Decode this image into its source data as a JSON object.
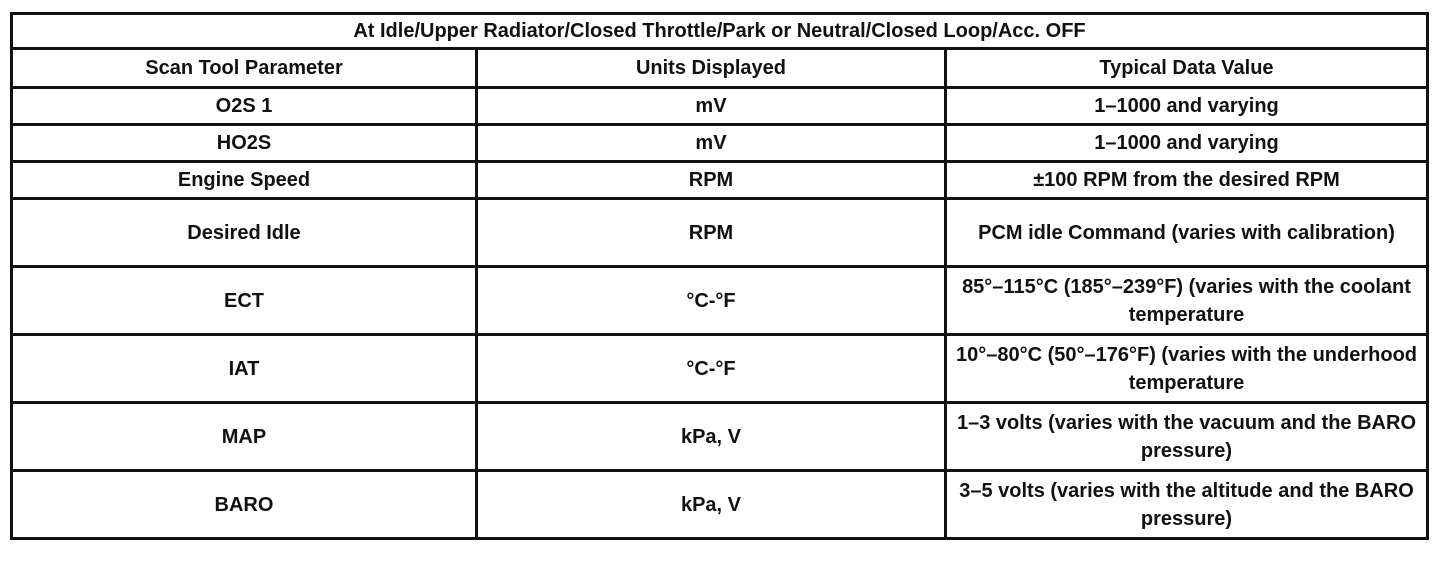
{
  "table": {
    "title": "At Idle/Upper Radiator/Closed Throttle/Park or Neutral/Closed Loop/Acc. OFF",
    "headers": [
      "Scan Tool Parameter",
      "Units Displayed",
      "Typical Data Value"
    ],
    "rows": [
      {
        "parameter": "O2S 1",
        "units": "mV",
        "value": "1–1000 and varying"
      },
      {
        "parameter": "HO2S",
        "units": "mV",
        "value": "1–1000 and varying"
      },
      {
        "parameter": "Engine Speed",
        "units": "RPM",
        "value": "±100 RPM from the desired RPM"
      },
      {
        "parameter": "Desired Idle",
        "units": "RPM",
        "value": "PCM idle Command (varies with calibration)"
      },
      {
        "parameter": "ECT",
        "units": "°C-°F",
        "value": "85°–115°C (185°–239°F) (varies with the coolant temperature"
      },
      {
        "parameter": "IAT",
        "units": "°C-°F",
        "value": "10°–80°C (50°–176°F) (varies with the underhood temperature"
      },
      {
        "parameter": "MAP",
        "units": "kPa, V",
        "value": "1–3 volts (varies with the vacuum and the BARO pressure)"
      },
      {
        "parameter": "BARO",
        "units": "kPa, V",
        "value": "3–5 volts (varies with the altitude and the BARO pressure)"
      }
    ]
  }
}
